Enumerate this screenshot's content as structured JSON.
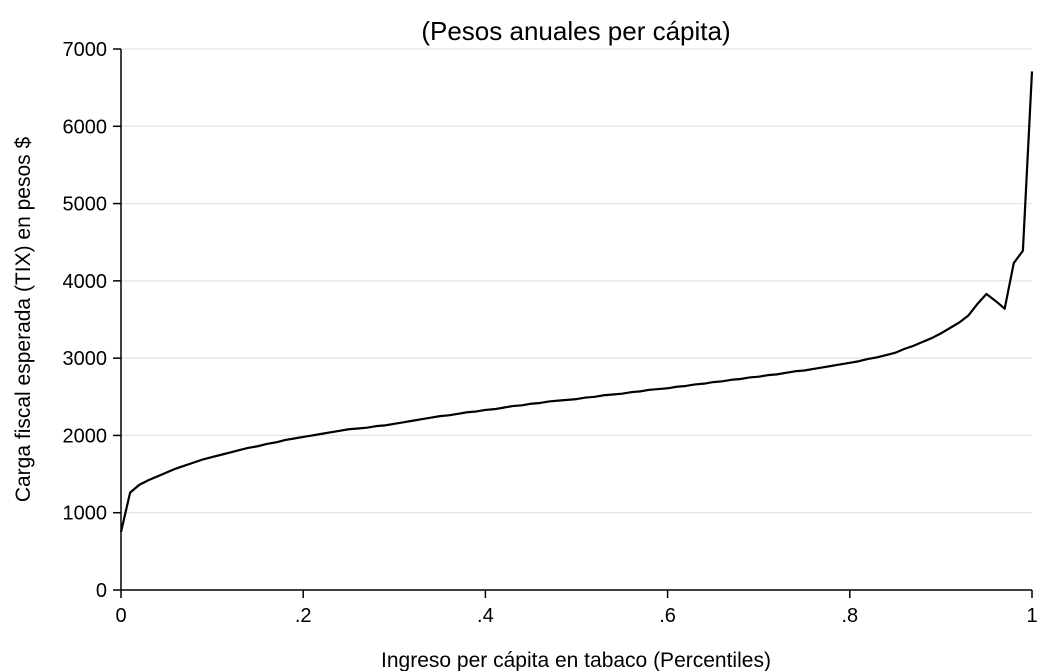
{
  "chart_data": {
    "type": "line",
    "title": "(Pesos anuales per cápita)",
    "xlabel": "Ingreso per cápita en tabaco (Percentiles)",
    "ylabel": "Carga fiscal esperada (TIX) en pesos $",
    "xlim": [
      0,
      1
    ],
    "ylim": [
      0,
      7000
    ],
    "x_ticks": [
      {
        "value": 0,
        "label": "0"
      },
      {
        "value": 0.2,
        "label": ".2"
      },
      {
        "value": 0.4,
        "label": ".4"
      },
      {
        "value": 0.6,
        "label": ".6"
      },
      {
        "value": 0.8,
        "label": ".8"
      },
      {
        "value": 1,
        "label": "1"
      }
    ],
    "y_ticks": [
      {
        "value": 0,
        "label": "0"
      },
      {
        "value": 1000,
        "label": "1000"
      },
      {
        "value": 2000,
        "label": "2000"
      },
      {
        "value": 3000,
        "label": "3000"
      },
      {
        "value": 4000,
        "label": "4000"
      },
      {
        "value": 5000,
        "label": "5000"
      },
      {
        "value": 6000,
        "label": "6000"
      },
      {
        "value": 7000,
        "label": "7000"
      }
    ],
    "grid": "horizontal",
    "series": [
      {
        "color": "#000000",
        "points": [
          [
            0.0,
            750
          ],
          [
            0.01,
            1260
          ],
          [
            0.02,
            1360
          ],
          [
            0.03,
            1420
          ],
          [
            0.04,
            1470
          ],
          [
            0.05,
            1520
          ],
          [
            0.06,
            1570
          ],
          [
            0.07,
            1610
          ],
          [
            0.08,
            1650
          ],
          [
            0.09,
            1690
          ],
          [
            0.1,
            1720
          ],
          [
            0.11,
            1750
          ],
          [
            0.12,
            1780
          ],
          [
            0.13,
            1810
          ],
          [
            0.14,
            1840
          ],
          [
            0.15,
            1860
          ],
          [
            0.16,
            1890
          ],
          [
            0.17,
            1910
          ],
          [
            0.18,
            1940
          ],
          [
            0.19,
            1960
          ],
          [
            0.2,
            1980
          ],
          [
            0.21,
            2000
          ],
          [
            0.22,
            2020
          ],
          [
            0.23,
            2040
          ],
          [
            0.24,
            2060
          ],
          [
            0.25,
            2080
          ],
          [
            0.26,
            2090
          ],
          [
            0.27,
            2100
          ],
          [
            0.28,
            2120
          ],
          [
            0.29,
            2130
          ],
          [
            0.3,
            2150
          ],
          [
            0.31,
            2170
          ],
          [
            0.32,
            2190
          ],
          [
            0.33,
            2210
          ],
          [
            0.34,
            2230
          ],
          [
            0.35,
            2250
          ],
          [
            0.36,
            2260
          ],
          [
            0.37,
            2280
          ],
          [
            0.38,
            2300
          ],
          [
            0.39,
            2310
          ],
          [
            0.4,
            2330
          ],
          [
            0.41,
            2340
          ],
          [
            0.42,
            2360
          ],
          [
            0.43,
            2380
          ],
          [
            0.44,
            2390
          ],
          [
            0.45,
            2410
          ],
          [
            0.46,
            2420
          ],
          [
            0.47,
            2440
          ],
          [
            0.48,
            2450
          ],
          [
            0.49,
            2460
          ],
          [
            0.5,
            2470
          ],
          [
            0.51,
            2490
          ],
          [
            0.52,
            2500
          ],
          [
            0.53,
            2520
          ],
          [
            0.54,
            2530
          ],
          [
            0.55,
            2540
          ],
          [
            0.56,
            2560
          ],
          [
            0.57,
            2570
          ],
          [
            0.58,
            2590
          ],
          [
            0.59,
            2600
          ],
          [
            0.6,
            2610
          ],
          [
            0.61,
            2630
          ],
          [
            0.62,
            2640
          ],
          [
            0.63,
            2660
          ],
          [
            0.64,
            2670
          ],
          [
            0.65,
            2690
          ],
          [
            0.66,
            2700
          ],
          [
            0.67,
            2720
          ],
          [
            0.68,
            2730
          ],
          [
            0.69,
            2750
          ],
          [
            0.7,
            2760
          ],
          [
            0.71,
            2780
          ],
          [
            0.72,
            2790
          ],
          [
            0.73,
            2810
          ],
          [
            0.74,
            2830
          ],
          [
            0.75,
            2840
          ],
          [
            0.76,
            2860
          ],
          [
            0.77,
            2880
          ],
          [
            0.78,
            2900
          ],
          [
            0.79,
            2920
          ],
          [
            0.8,
            2940
          ],
          [
            0.81,
            2960
          ],
          [
            0.82,
            2990
          ],
          [
            0.83,
            3010
          ],
          [
            0.84,
            3040
          ],
          [
            0.85,
            3070
          ],
          [
            0.86,
            3120
          ],
          [
            0.87,
            3160
          ],
          [
            0.88,
            3210
          ],
          [
            0.89,
            3260
          ],
          [
            0.9,
            3320
          ],
          [
            0.91,
            3390
          ],
          [
            0.92,
            3460
          ],
          [
            0.93,
            3550
          ],
          [
            0.94,
            3700
          ],
          [
            0.95,
            3830
          ],
          [
            0.96,
            3740
          ],
          [
            0.97,
            3640
          ],
          [
            0.98,
            4230
          ],
          [
            0.99,
            4390
          ],
          [
            1.0,
            6710
          ]
        ]
      }
    ]
  }
}
